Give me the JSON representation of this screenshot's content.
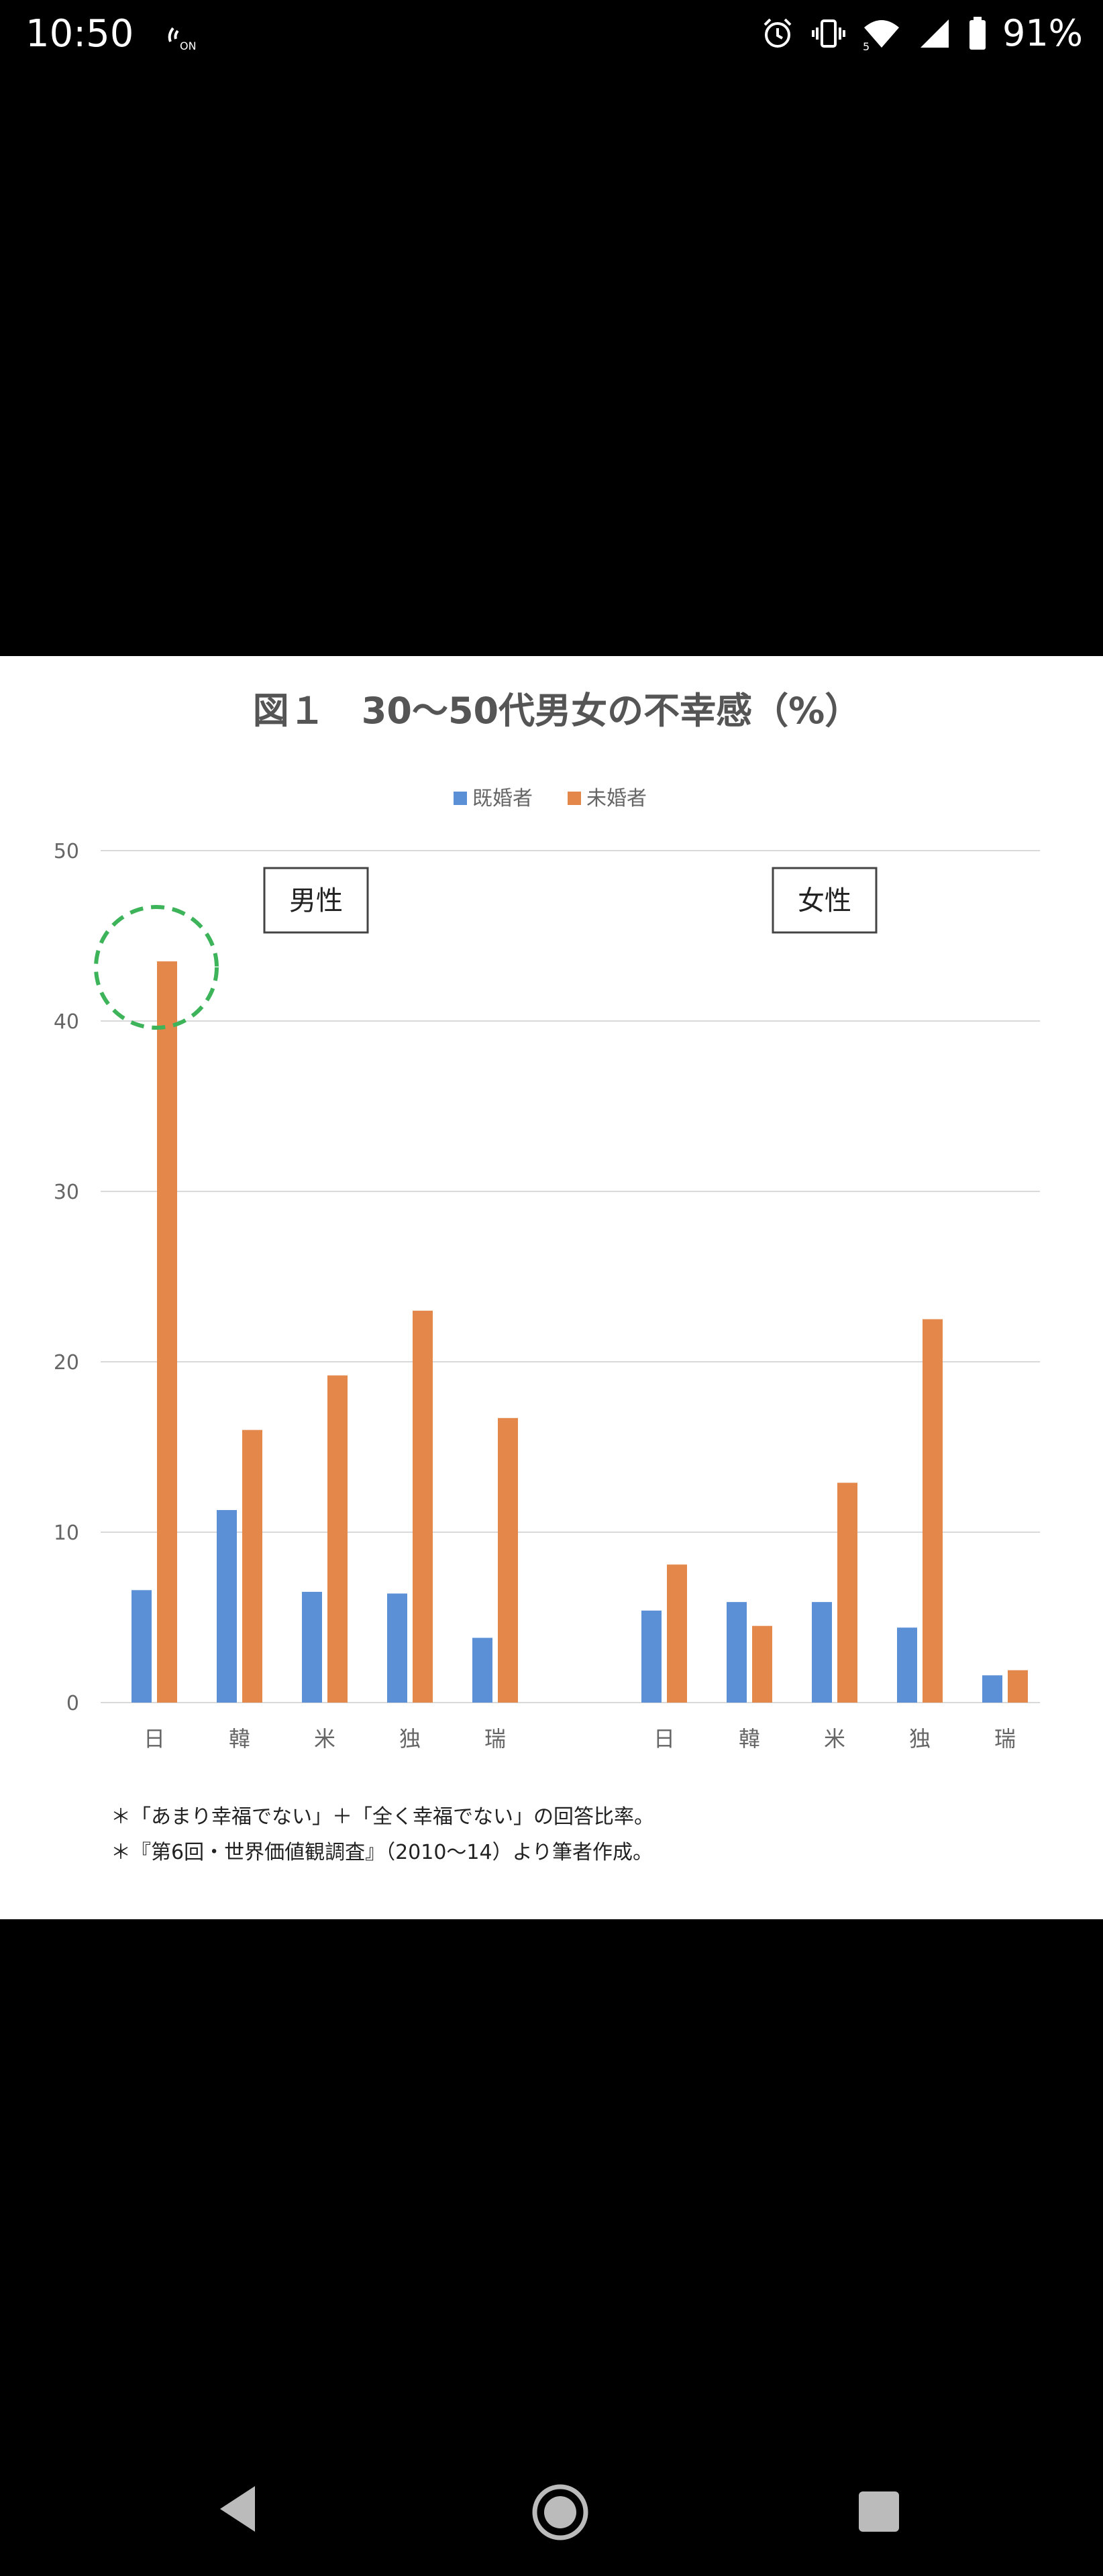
{
  "status_bar": {
    "time": "10:50",
    "nfc_badge": "ON",
    "network_label": "5",
    "battery": "91%"
  },
  "chart_data": {
    "type": "bar",
    "title": "図１　30〜50代男女の不幸感（%）",
    "legend": [
      "既婚者",
      "未婚者"
    ],
    "legend_position": "top-center",
    "colors": {
      "既婚者": "#5b8fd6",
      "未婚者": "#e4874a"
    },
    "grid": true,
    "ylim": [
      0,
      50
    ],
    "yticks": [
      "0",
      "10",
      "20",
      "30",
      "40",
      "50"
    ],
    "groups": [
      {
        "label": "男性",
        "categories": [
          "日",
          "韓",
          "米",
          "独",
          "瑞"
        ],
        "series": [
          {
            "name": "既婚者",
            "values": [
              6.6,
              11.3,
              6.5,
              6.4,
              3.8
            ]
          },
          {
            "name": "未婚者",
            "values": [
              43.5,
              16.0,
              19.2,
              23.0,
              16.7
            ]
          }
        ]
      },
      {
        "label": "女性",
        "categories": [
          "日",
          "韓",
          "米",
          "独",
          "瑞"
        ],
        "series": [
          {
            "name": "既婚者",
            "values": [
              5.4,
              5.9,
              5.9,
              4.4,
              1.6
            ]
          },
          {
            "name": "未婚者",
            "values": [
              8.1,
              4.5,
              12.9,
              22.5,
              1.9
            ]
          }
        ]
      }
    ],
    "notes": [
      "＊「あまり幸福でない」＋「全く幸福でない」の回答比率。",
      "＊『第6回・世界価値観調査』（2010〜14）より筆者作成。"
    ]
  }
}
